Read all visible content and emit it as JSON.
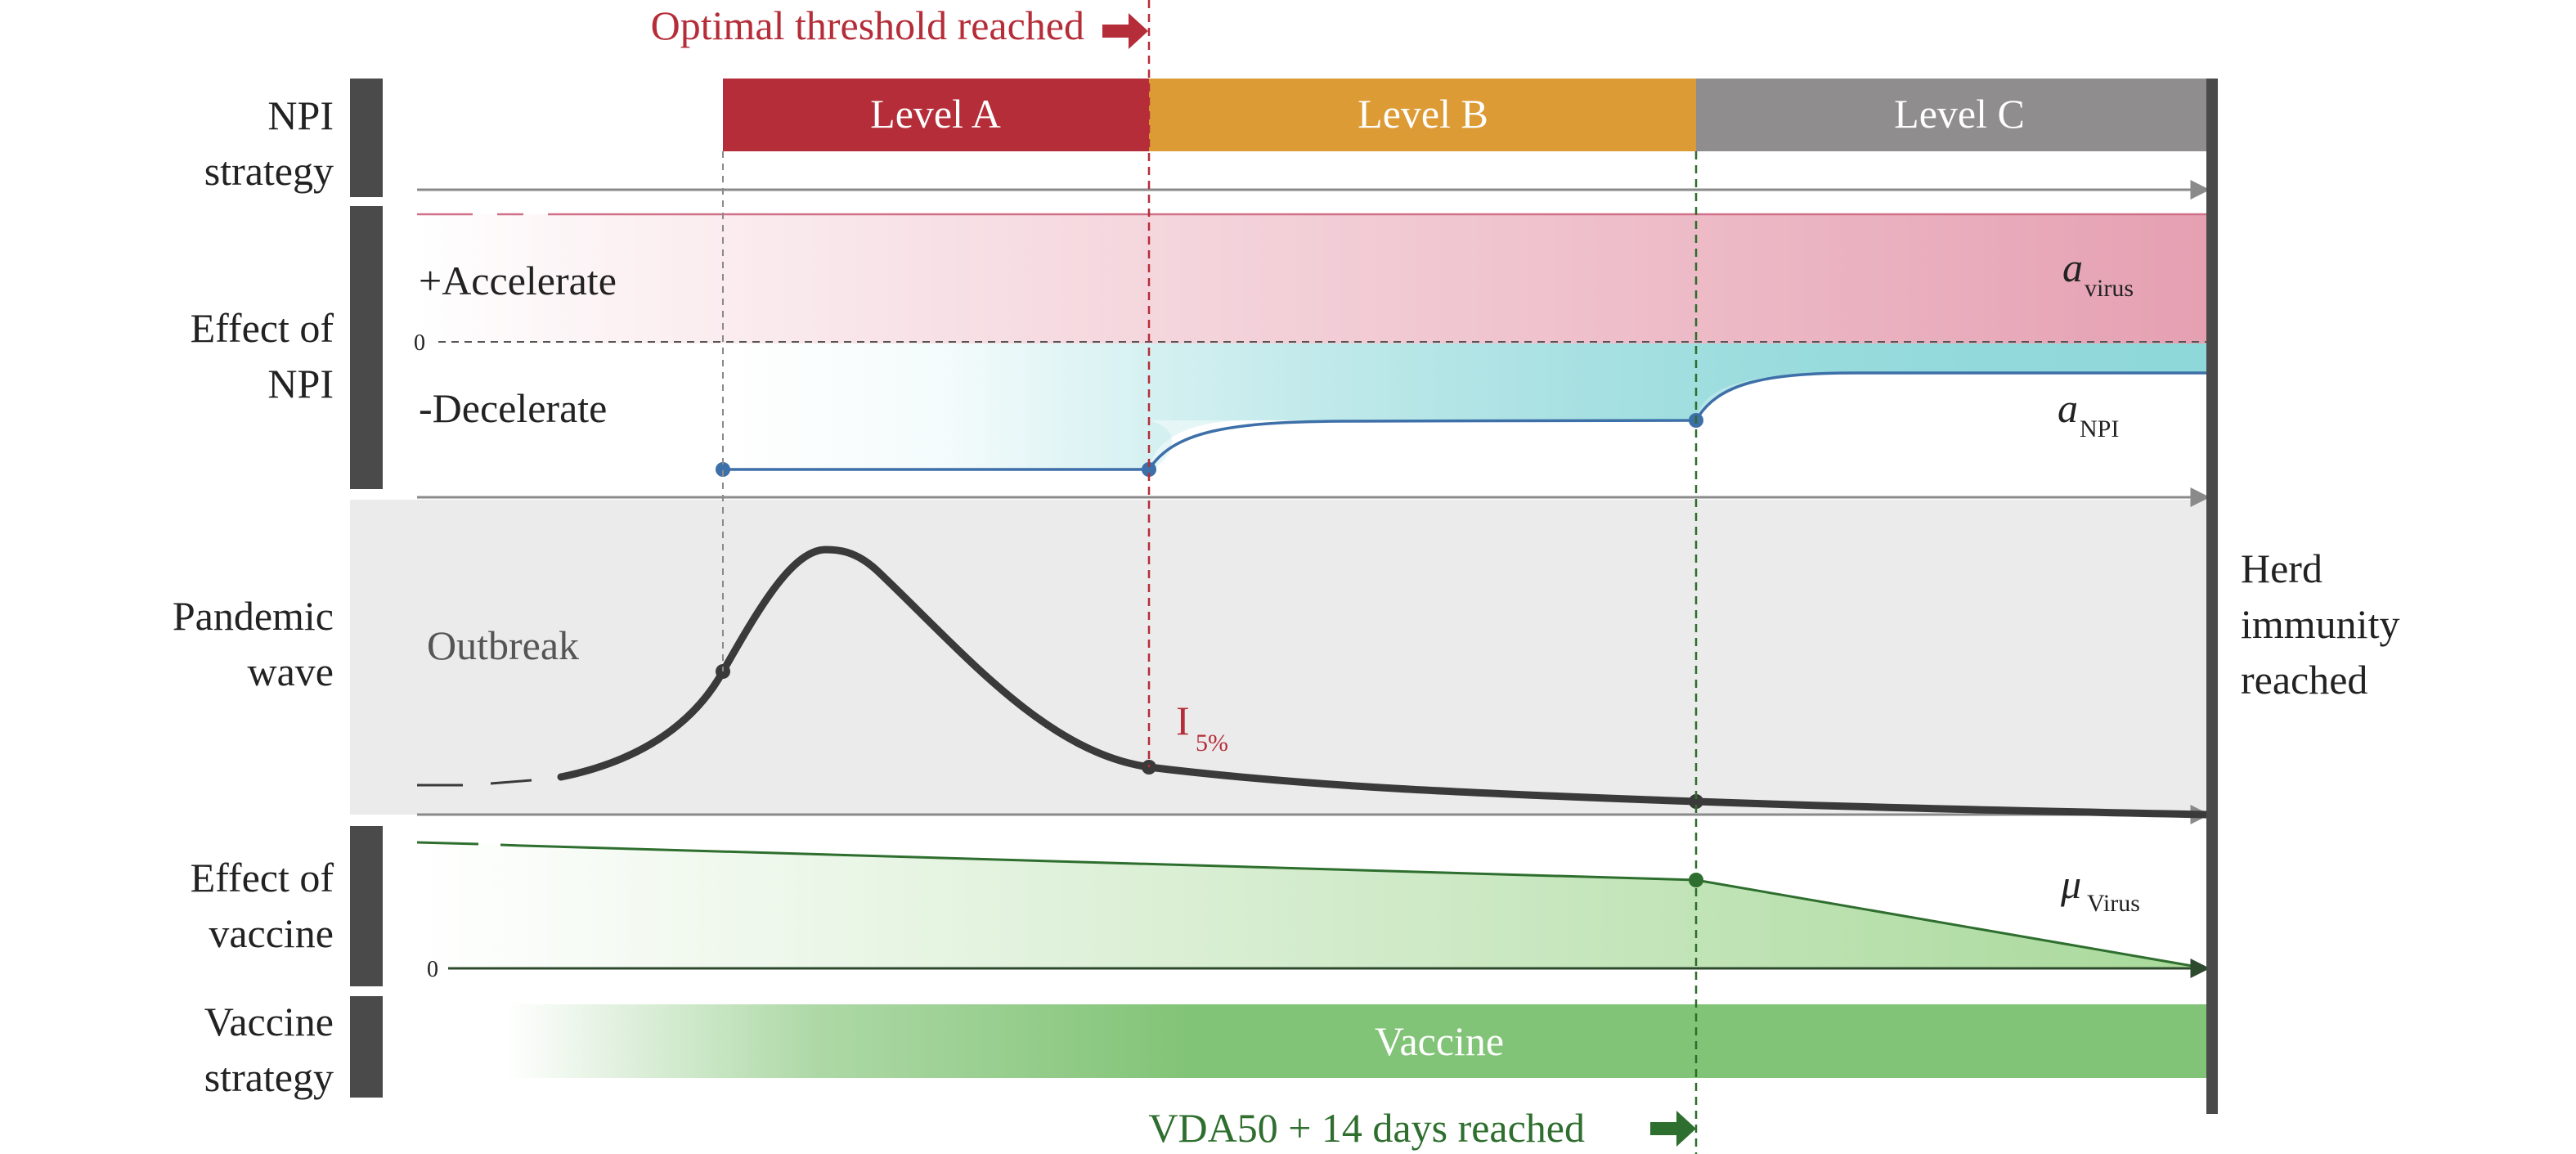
{
  "annotations": {
    "optimal_threshold": "Optimal threshold reached",
    "vda50": "VDA50 + 14 days reached",
    "herd_immunity": [
      "Herd",
      "immunity",
      "reached"
    ]
  },
  "row_labels": {
    "npi_strategy": [
      "NPI",
      "strategy"
    ],
    "effect_of_npi": [
      "Effect of",
      "NPI"
    ],
    "pandemic_wave": [
      "Pandemic",
      "wave"
    ],
    "effect_of_vaccine": [
      "Effect of",
      "vaccine"
    ],
    "vaccine_strategy": [
      "Vaccine",
      "strategy"
    ]
  },
  "levels": [
    {
      "label": "Level A",
      "color": "#b52d38"
    },
    {
      "label": "Level B",
      "color": "#dd9b35"
    },
    {
      "label": "Level C",
      "color": "#8f8d8e"
    }
  ],
  "npi_effect": {
    "accelerate": "+Accelerate",
    "decelerate": "-Decelerate",
    "zero": "0",
    "a_virus": {
      "symbol": "a",
      "subscript": "virus"
    },
    "a_npi": {
      "symbol": "a",
      "subscript": "NPI"
    },
    "accelerate_color": "#e8a0b0",
    "decelerate_color": "#8fd8da",
    "curve_color": "#3d6fa8"
  },
  "pandemic": {
    "outbreak": "Outbreak",
    "i_symbol": "I",
    "i_subscript": "5%",
    "background_color": "#ebebeb",
    "curve_color": "#3a3a3a"
  },
  "vaccine_effect": {
    "zero": "0",
    "mu": {
      "symbol": "μ",
      "subscript": "Virus"
    },
    "fill_color": "#a8d99a",
    "line_color": "#2e6e2e"
  },
  "vaccine_strategy": {
    "label": "Vaccine",
    "color": "#82c477"
  },
  "colors": {
    "threshold_red": "#b52d38",
    "vda_green": "#2e6e2e",
    "side_bar": "#4a4a4a"
  }
}
